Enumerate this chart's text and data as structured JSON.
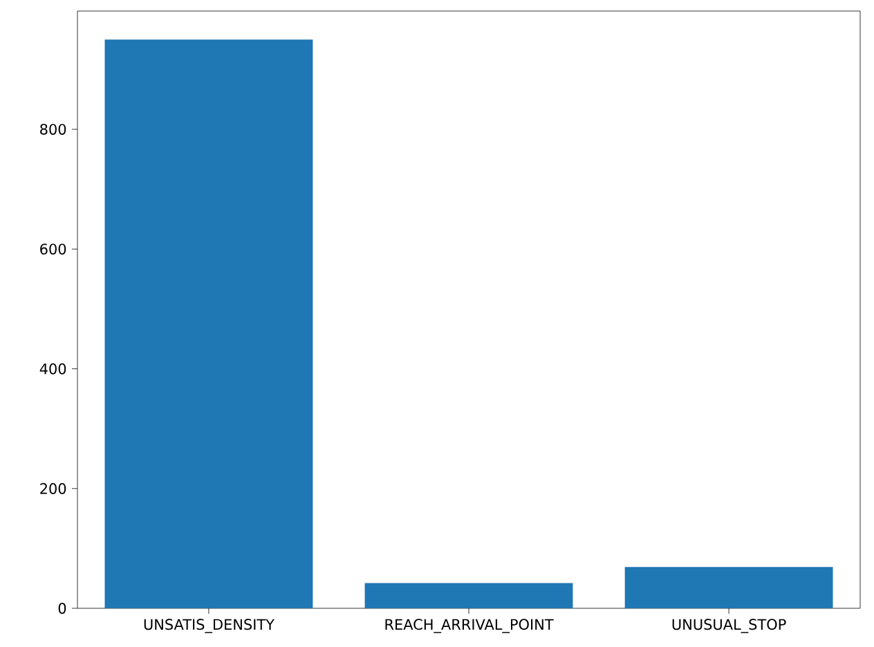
{
  "chart_data": {
    "type": "bar",
    "categories": [
      "UNSATIS_DENSITY",
      "REACH_ARRIVAL_POINT",
      "UNUSUAL_STOP"
    ],
    "values": [
      950,
      42,
      69
    ],
    "color": "#1f77b4",
    "ylim": [
      0,
      997.5
    ],
    "yticks": [
      0,
      200,
      400,
      600,
      800
    ]
  }
}
